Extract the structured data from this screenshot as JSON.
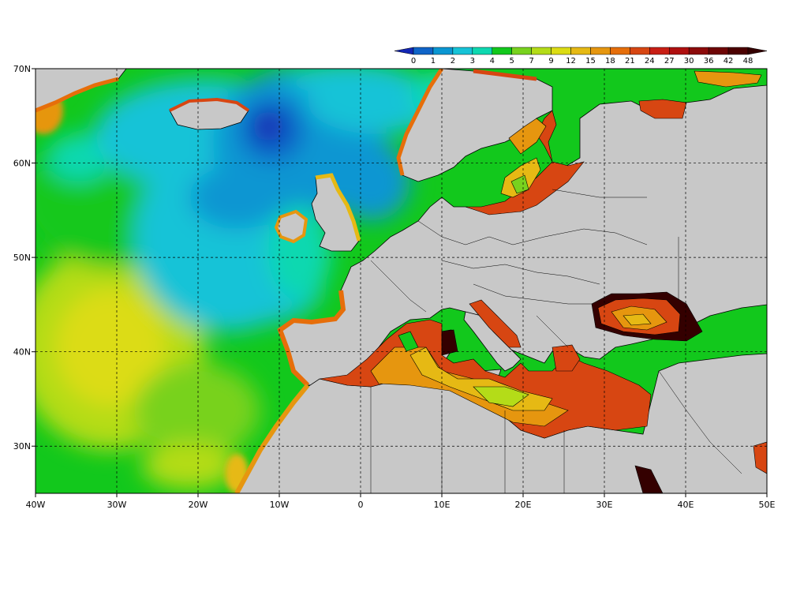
{
  "map": {
    "lon_range": [
      -40,
      50
    ],
    "lat_range": [
      25,
      70
    ],
    "x_ticks": [
      {
        "value": -40,
        "label": "40W"
      },
      {
        "value": -30,
        "label": "30W"
      },
      {
        "value": -20,
        "label": "20W"
      },
      {
        "value": -10,
        "label": "10W"
      },
      {
        "value": 0,
        "label": "0"
      },
      {
        "value": 10,
        "label": "10E"
      },
      {
        "value": 20,
        "label": "20E"
      },
      {
        "value": 30,
        "label": "30E"
      },
      {
        "value": 40,
        "label": "40E"
      },
      {
        "value": 50,
        "label": "50E"
      }
    ],
    "y_ticks": [
      {
        "value": 30,
        "label": "30N"
      },
      {
        "value": 40,
        "label": "40N"
      },
      {
        "value": 50,
        "label": "50N"
      },
      {
        "value": 60,
        "label": "60N"
      },
      {
        "value": 70,
        "label": "70N"
      }
    ],
    "gridlines": "dashed",
    "land_color": "#c8c8c8",
    "colorbar": {
      "labels": [
        "0",
        "1",
        "2",
        "3",
        "4",
        "5",
        "7",
        "9",
        "12",
        "15",
        "18",
        "21",
        "24",
        "27",
        "30",
        "36",
        "42",
        "48"
      ],
      "colors": [
        "#1226b4",
        "#0f64c8",
        "#0a96d2",
        "#16c3d7",
        "#0ed8b0",
        "#12c81c",
        "#78d21e",
        "#b4dc18",
        "#dcdc14",
        "#e6b914",
        "#e6960f",
        "#e66e0a",
        "#d74612",
        "#c81e14",
        "#af0f0f",
        "#8c0a0a",
        "#6e0505",
        "#4b0000",
        "#340000"
      ]
    }
  }
}
